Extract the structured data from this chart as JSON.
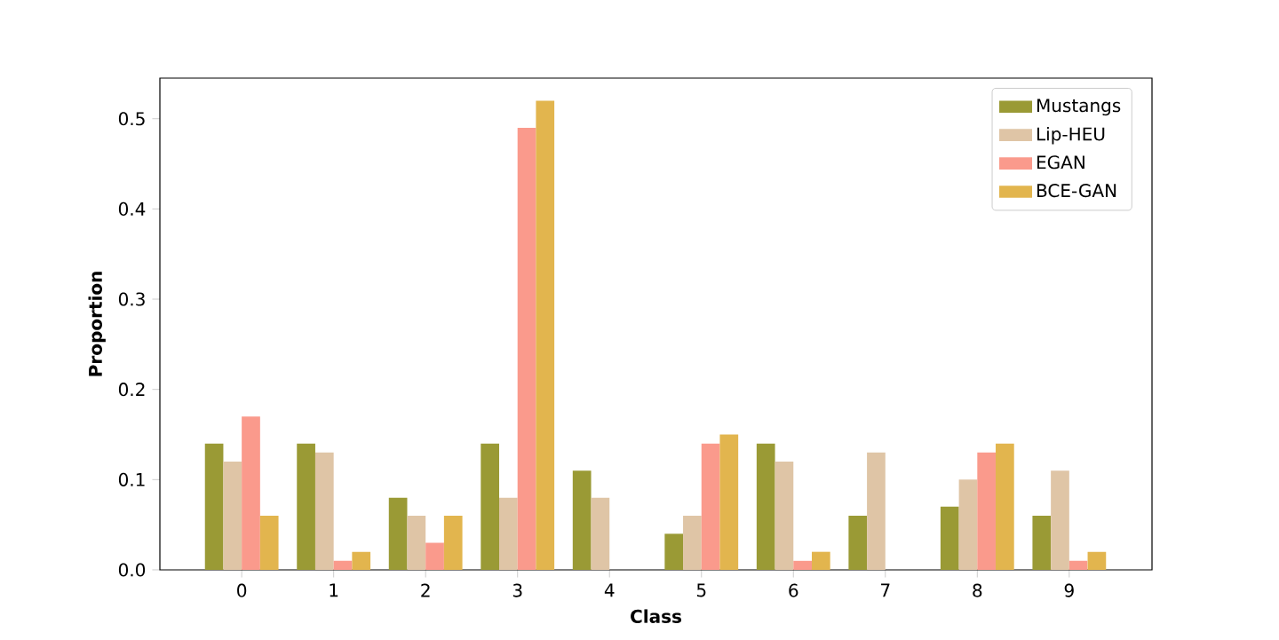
{
  "chart_data": {
    "type": "bar",
    "xlabel": "Class",
    "ylabel": "Proportion",
    "categories": [
      "0",
      "1",
      "2",
      "3",
      "4",
      "5",
      "6",
      "7",
      "8",
      "9"
    ],
    "series": [
      {
        "name": "Mustangs",
        "color": "#9a9a35",
        "values": [
          0.14,
          0.14,
          0.08,
          0.14,
          0.11,
          0.04,
          0.14,
          0.06,
          0.07,
          0.06
        ]
      },
      {
        "name": "Lip-HEU",
        "color": "#dfc5a6",
        "values": [
          0.12,
          0.13,
          0.06,
          0.08,
          0.08,
          0.06,
          0.12,
          0.13,
          0.1,
          0.11
        ]
      },
      {
        "name": "EGAN",
        "color": "#fa9a8c",
        "values": [
          0.17,
          0.01,
          0.03,
          0.49,
          0,
          0.14,
          0.01,
          0,
          0.13,
          0.01
        ]
      },
      {
        "name": "BCE-GAN",
        "color": "#e2b54e",
        "values": [
          0.06,
          0.02,
          0.06,
          0.52,
          0,
          0.15,
          0.02,
          0,
          0.14,
          0.02
        ]
      }
    ],
    "ylim": [
      0,
      0.545
    ],
    "yticks": [
      {
        "value": 0,
        "label": "0.0"
      },
      {
        "value": 0.1,
        "label": "0.1"
      },
      {
        "value": 0.2,
        "label": "0.2"
      },
      {
        "value": 0.3,
        "label": "0.3"
      },
      {
        "value": 0.4,
        "label": "0.4"
      },
      {
        "value": 0.5,
        "label": "0.5"
      }
    ],
    "grid": false,
    "legend": "top right"
  }
}
